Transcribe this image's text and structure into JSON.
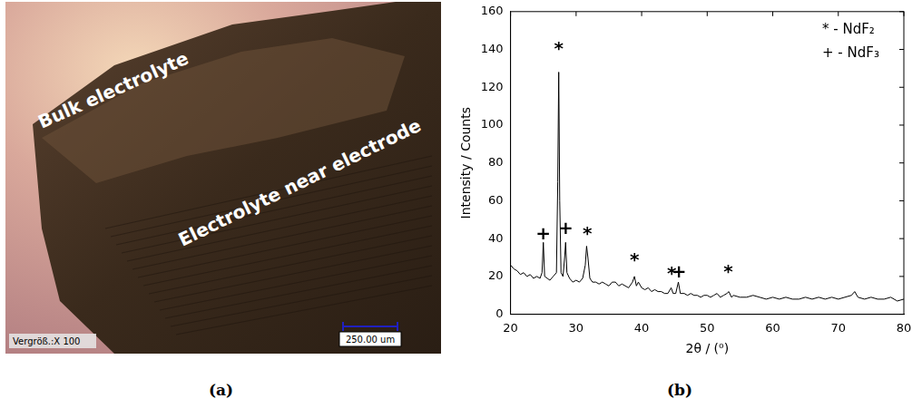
{
  "photo": {
    "panel_label": "(a)",
    "labels": [
      "Bulk electrolyte",
      "Electrolyte near electrode"
    ],
    "magnification": "Vergröß.:X 100",
    "scale_bar": "250.00 um"
  },
  "chart_data": {
    "panel_label": "(b)",
    "type": "line",
    "x_label": "2θ / (⁰)",
    "y_label": "Intensity / Counts",
    "color": "#000000",
    "grid": false,
    "xlim": [
      20,
      80
    ],
    "xticks": [
      20,
      30,
      40,
      50,
      60,
      70,
      80
    ],
    "ylim": [
      0,
      160
    ],
    "yticks": [
      0,
      20,
      40,
      60,
      80,
      100,
      120,
      140,
      160
    ],
    "x": [
      20,
      20.5,
      21,
      21.5,
      22,
      22.5,
      23,
      23.5,
      24,
      24.5,
      24.8,
      25,
      25.2,
      25.6,
      26,
      26.5,
      27,
      27.2,
      27.35,
      27.5,
      27.7,
      28,
      28.25,
      28.4,
      28.6,
      29,
      29.5,
      30,
      30.5,
      31,
      31.4,
      31.6,
      31.8,
      32.1,
      32.5,
      33,
      33.5,
      34,
      34.5,
      35,
      35.5,
      36,
      36.5,
      37,
      37.5,
      38,
      38.6,
      38.9,
      39.2,
      39.5,
      40,
      40.5,
      41,
      41.5,
      42,
      42.5,
      43,
      43.5,
      44,
      44.5,
      44.8,
      45.2,
      45.6,
      45.9,
      46.5,
      47,
      47.5,
      48,
      48.5,
      49,
      49.5,
      50,
      50.5,
      51,
      51.5,
      52,
      52.5,
      53,
      53.3,
      53.7,
      54,
      55,
      56,
      57,
      58,
      59,
      60,
      61,
      62,
      63,
      64,
      65,
      66,
      67,
      68,
      69,
      70,
      71,
      72,
      72.5,
      73,
      74,
      75,
      76,
      77,
      78,
      79,
      80
    ],
    "values": [
      26,
      24,
      23,
      21,
      22,
      20,
      21,
      19,
      20,
      19,
      22,
      38,
      20,
      19,
      18,
      20,
      22,
      70,
      128,
      60,
      22,
      20,
      30,
      38,
      22,
      19,
      17,
      18,
      17,
      19,
      26,
      36,
      30,
      19,
      17,
      17,
      16,
      17,
      16,
      15,
      17,
      17,
      15,
      16,
      15,
      14,
      17,
      20,
      15,
      17,
      14,
      13,
      14,
      12,
      13,
      12,
      12,
      11,
      11,
      14,
      11,
      11,
      17,
      11,
      11,
      10,
      11,
      10,
      10,
      9,
      10,
      10,
      9,
      10,
      11,
      9,
      10,
      11,
      12,
      9,
      10,
      9,
      9,
      10,
      9,
      8,
      9,
      8,
      9,
      8,
      8,
      9,
      8,
      9,
      8,
      9,
      8,
      9,
      10,
      12,
      9,
      8,
      9,
      8,
      8,
      9,
      7,
      8
    ],
    "annotations": [
      {
        "text": "+",
        "x": 25,
        "y": 42
      },
      {
        "text": "*",
        "x": 27.35,
        "y": 140
      },
      {
        "text": "+",
        "x": 28.4,
        "y": 45
      },
      {
        "text": "*",
        "x": 31.7,
        "y": 42
      },
      {
        "text": "*",
        "x": 38.9,
        "y": 28
      },
      {
        "text": "*",
        "x": 44.6,
        "y": 21
      },
      {
        "text": "+",
        "x": 45.7,
        "y": 22
      },
      {
        "text": "*",
        "x": 53.2,
        "y": 22
      }
    ],
    "key": [
      "* - NdF₂",
      "+ - NdF₃"
    ]
  }
}
